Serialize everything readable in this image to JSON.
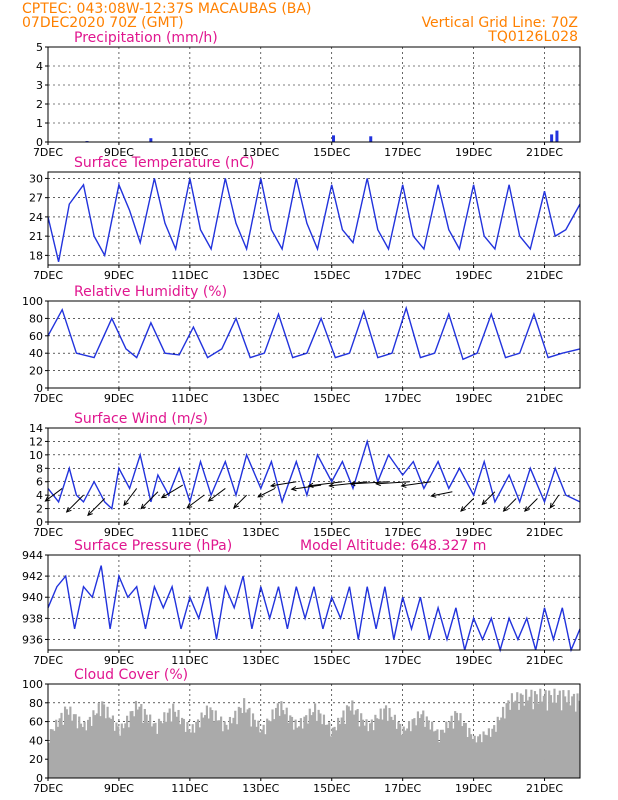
{
  "header": {
    "line1_left": "CPTEC:   043:08W-12:37S   MACAUBAS (BA)",
    "line2_left": "07DEC2020 70Z (GMT)",
    "line1_right": "Vertical Grid Line: 70Z",
    "line2_right": "TQ0126L028"
  },
  "x_axis": {
    "tick_labels": [
      "7DEC",
      "9DEC",
      "11DEC",
      "13DEC",
      "15DEC",
      "17DEC",
      "19DEC",
      "21DEC"
    ],
    "tick_days": [
      0,
      2,
      4,
      6,
      8,
      10,
      12,
      14
    ],
    "day_range": [
      0,
      15
    ]
  },
  "colors": {
    "line": "#2233dd",
    "cloud": "#aaaaaa",
    "title": "#e0168f",
    "header": "#ff8000",
    "wind": "#000000"
  },
  "chart_data": [
    {
      "id": "precip",
      "type": "bar",
      "title": "Precipitation (mm/h)",
      "ylim": [
        0,
        5
      ],
      "yticks": [
        0,
        1,
        2,
        3,
        4,
        5
      ],
      "grid": true,
      "x": [
        1.1,
        2.9,
        8.05,
        9.1,
        14.2,
        14.35
      ],
      "values": [
        0.05,
        0.2,
        0.35,
        0.3,
        0.4,
        0.6
      ]
    },
    {
      "id": "temp",
      "type": "line",
      "title": "Surface Temperature (nC)",
      "ylim": [
        16.5,
        31
      ],
      "yticks": [
        18,
        21,
        24,
        27,
        30
      ],
      "grid": true,
      "x": [
        0,
        0.3,
        0.6,
        1.0,
        1.3,
        1.6,
        2.0,
        2.3,
        2.6,
        3.0,
        3.3,
        3.6,
        4.0,
        4.3,
        4.6,
        5.0,
        5.3,
        5.6,
        6.0,
        6.3,
        6.6,
        7.0,
        7.3,
        7.6,
        8.0,
        8.3,
        8.6,
        9.0,
        9.3,
        9.6,
        10.0,
        10.3,
        10.6,
        11.0,
        11.3,
        11.6,
        12.0,
        12.3,
        12.6,
        13.0,
        13.3,
        13.6,
        14.0,
        14.3,
        14.6,
        15.0
      ],
      "values": [
        24,
        17,
        26,
        29,
        21,
        18,
        29,
        25,
        20,
        30,
        23,
        19,
        30,
        22,
        19,
        30,
        23,
        19,
        30,
        22,
        19,
        30,
        23,
        19,
        29,
        22,
        20,
        30,
        22,
        19,
        29,
        21,
        19,
        29,
        22,
        19,
        29,
        21,
        19,
        29,
        21,
        19,
        28,
        21,
        22,
        26
      ]
    },
    {
      "id": "rh",
      "type": "line",
      "title": "Relative Humidity (%)",
      "ylim": [
        0,
        100
      ],
      "yticks": [
        0,
        20,
        40,
        60,
        80,
        100
      ],
      "grid": true,
      "x": [
        0,
        0.4,
        0.8,
        1.3,
        1.8,
        2.2,
        2.5,
        2.9,
        3.3,
        3.7,
        4.1,
        4.5,
        4.9,
        5.3,
        5.7,
        6.1,
        6.5,
        6.9,
        7.3,
        7.7,
        8.1,
        8.5,
        8.9,
        9.3,
        9.7,
        10.1,
        10.5,
        10.9,
        11.3,
        11.7,
        12.1,
        12.5,
        12.9,
        13.3,
        13.7,
        14.1,
        14.5,
        15.0
      ],
      "values": [
        60,
        90,
        40,
        35,
        80,
        45,
        35,
        75,
        40,
        38,
        70,
        35,
        45,
        80,
        35,
        40,
        85,
        35,
        40,
        80,
        35,
        40,
        88,
        35,
        40,
        92,
        35,
        40,
        85,
        33,
        40,
        85,
        35,
        40,
        85,
        35,
        40,
        45
      ]
    },
    {
      "id": "wind",
      "type": "line",
      "title": "Surface Wind (m/s)",
      "ylim": [
        0,
        14
      ],
      "yticks": [
        0,
        2,
        4,
        6,
        8,
        10,
        12,
        14
      ],
      "grid": true,
      "x": [
        0,
        0.3,
        0.6,
        0.8,
        1.0,
        1.3,
        1.6,
        1.8,
        2.0,
        2.3,
        2.6,
        2.9,
        3.1,
        3.4,
        3.7,
        4.0,
        4.3,
        4.6,
        5.0,
        5.3,
        5.6,
        6.0,
        6.3,
        6.6,
        7.0,
        7.3,
        7.6,
        8.0,
        8.3,
        8.6,
        9.0,
        9.3,
        9.6,
        10.0,
        10.3,
        10.6,
        11.0,
        11.3,
        11.6,
        12.0,
        12.3,
        12.6,
        13.0,
        13.3,
        13.6,
        14.0,
        14.3,
        14.6,
        15.0
      ],
      "values": [
        5,
        3,
        8,
        4,
        3,
        6,
        3,
        2,
        8,
        5,
        10,
        3,
        7,
        4,
        8,
        3,
        9,
        4,
        9,
        4,
        10,
        5,
        9,
        3,
        9,
        4,
        10,
        6,
        9,
        5,
        12,
        6,
        10,
        7,
        9,
        5,
        9,
        5,
        8,
        4,
        9,
        3,
        7,
        3,
        8,
        3,
        8,
        4,
        3
      ],
      "arrows": {
        "x": [
          0.4,
          1.0,
          1.6,
          2.5,
          3.1,
          3.8,
          4.4,
          5.0,
          5.6,
          6.4,
          7.0,
          7.7,
          8.3,
          9.0,
          9.6,
          10.2,
          10.8,
          11.4,
          12.0,
          12.6,
          13.2,
          13.8,
          14.4
        ],
        "y": [
          5,
          4,
          3.5,
          5,
          4.5,
          5.5,
          4,
          5,
          4,
          5,
          6,
          5.5,
          6,
          6,
          6,
          6,
          6,
          4.5,
          3.5,
          4.5,
          3.5,
          3.5,
          4
        ],
        "u": [
          4,
          4,
          4,
          3,
          4,
          5,
          4,
          4,
          3,
          4,
          6,
          7,
          8,
          9,
          9,
          8,
          7,
          5,
          3,
          3,
          3,
          3,
          2
        ],
        "v": [
          3,
          4,
          4,
          4,
          4,
          3,
          3,
          3,
          3,
          2,
          1,
          1,
          1,
          1,
          0.5,
          0.5,
          1,
          1,
          3,
          3,
          3,
          3,
          3
        ]
      }
    },
    {
      "id": "pres",
      "type": "line",
      "title": "Surface Pressure (hPa)",
      "annotation": "Model Altitude: 648.327 m",
      "ylim": [
        935,
        944
      ],
      "yticks": [
        936,
        938,
        940,
        942,
        944
      ],
      "grid": true,
      "x": [
        0,
        0.25,
        0.5,
        0.75,
        1.0,
        1.25,
        1.5,
        1.75,
        2.0,
        2.25,
        2.5,
        2.75,
        3.0,
        3.25,
        3.5,
        3.75,
        4.0,
        4.25,
        4.5,
        4.75,
        5.0,
        5.25,
        5.5,
        5.75,
        6.0,
        6.25,
        6.5,
        6.75,
        7.0,
        7.25,
        7.5,
        7.75,
        8.0,
        8.25,
        8.5,
        8.75,
        9.0,
        9.25,
        9.5,
        9.75,
        10.0,
        10.25,
        10.5,
        10.75,
        11.0,
        11.25,
        11.5,
        11.75,
        12.0,
        12.25,
        12.5,
        12.75,
        13.0,
        13.25,
        13.5,
        13.75,
        14.0,
        14.25,
        14.5,
        14.75,
        15.0
      ],
      "values": [
        939,
        941,
        942,
        937,
        941,
        940,
        943,
        937,
        942,
        940,
        941,
        937,
        941,
        939,
        941,
        937,
        940,
        938,
        941,
        936,
        941,
        939,
        942,
        937,
        941,
        938,
        941,
        937,
        941,
        938,
        941,
        937,
        940,
        938,
        941,
        936,
        941,
        937,
        941,
        936,
        940,
        937,
        940,
        936,
        939,
        936,
        939,
        935,
        938,
        936,
        938,
        935,
        938,
        936,
        938,
        935,
        939,
        936,
        939,
        935,
        937
      ]
    },
    {
      "id": "cloud",
      "type": "area",
      "title": "Cloud Cover (%)",
      "ylim": [
        0,
        100
      ],
      "yticks": [
        0,
        20,
        40,
        60,
        80,
        100
      ],
      "grid": true,
      "x": [
        0,
        0.5,
        1.0,
        1.5,
        2.0,
        2.5,
        3.0,
        3.5,
        4.0,
        4.5,
        5.0,
        5.5,
        6.0,
        6.5,
        7.0,
        7.5,
        8.0,
        8.5,
        9.0,
        9.5,
        10.0,
        10.5,
        11.0,
        11.5,
        12.0,
        12.5,
        13.0,
        13.5,
        14.0,
        14.5,
        15.0
      ],
      "values": [
        50,
        80,
        60,
        85,
        55,
        85,
        60,
        80,
        55,
        80,
        60,
        85,
        55,
        85,
        60,
        80,
        55,
        85,
        60,
        80,
        55,
        75,
        50,
        75,
        45,
        55,
        90,
        95,
        95,
        95,
        90
      ]
    }
  ]
}
